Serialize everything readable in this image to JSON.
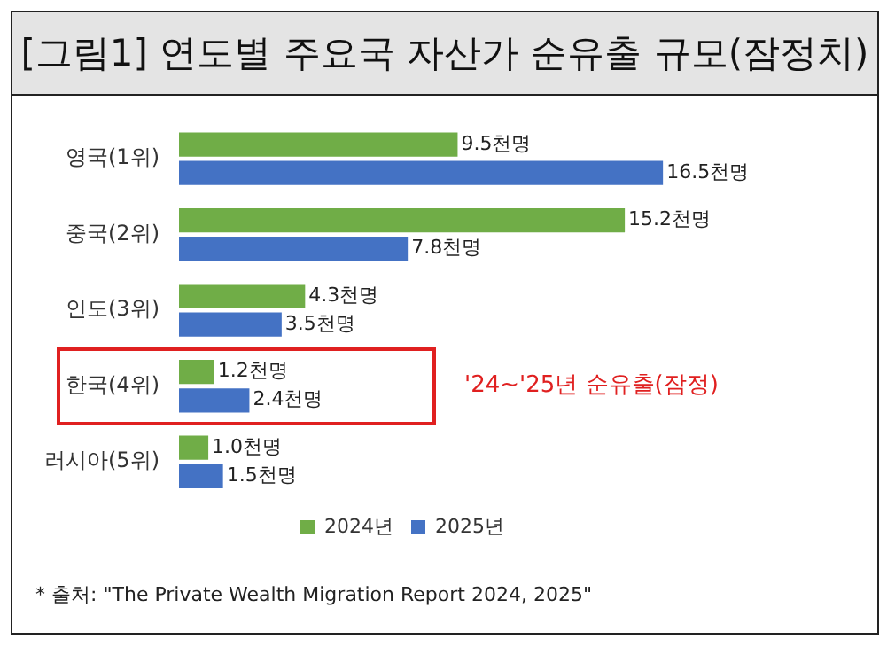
{
  "chart_data": {
    "type": "bar",
    "orientation": "horizontal",
    "title": "[그림1] 연도별 주요국 자산가 순유출 규모(잠정치)",
    "categories": [
      "영국(1위)",
      "중국(2위)",
      "인도(3위)",
      "한국(4위)",
      "러시아(5위)"
    ],
    "series": [
      {
        "name": "2024년",
        "color": "#70ad47",
        "values": [
          9.5,
          15.2,
          4.3,
          1.2,
          1.0
        ],
        "value_labels": [
          "9.5천명",
          "15.2천명",
          "4.3천명",
          "1.2천명",
          "1.0천명"
        ]
      },
      {
        "name": "2025년",
        "color": "#4472c4",
        "values": [
          16.5,
          7.8,
          3.5,
          2.4,
          1.5
        ],
        "value_labels": [
          "16.5천명",
          "7.8천명",
          "3.5천명",
          "2.4천명",
          "1.5천명"
        ]
      }
    ],
    "legend": "bottom",
    "grid": false,
    "annotations": [
      "'24~'25년 순유출(잠정)",
      "* 출처: \"The Private Wealth Migration Report 2024, 2025\""
    ]
  }
}
